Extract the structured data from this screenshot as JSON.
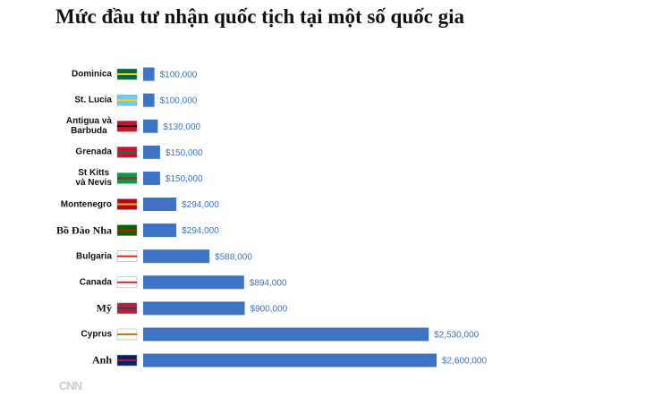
{
  "chart_data": {
    "type": "hbar",
    "title": "Mức đầu tư nhận quốc tịch tại một số quốc gia",
    "categories": [
      "Dominica",
      "St. Lucia",
      "Antigua và\nBarbuda",
      "Grenada",
      "St Kitts\nvà Nevis",
      "Montenegro",
      "Bồ Đào Nha",
      "Bulgaria",
      "Canada",
      "Mỹ",
      "Cyprus",
      "Anh"
    ],
    "values": [
      100000,
      100000,
      130000,
      150000,
      150000,
      294000,
      294000,
      588000,
      894000,
      900000,
      2530000,
      2600000
    ],
    "value_labels": [
      "$100,000",
      "$100,000",
      "$130,000",
      "$150,000",
      "$150,000",
      "$294,000",
      "$294,000",
      "$588,000",
      "$894,000",
      "$900,000",
      "$2,530,000",
      "$2,600,000"
    ],
    "color": "#3d72c4",
    "watermark": "CNN"
  }
}
